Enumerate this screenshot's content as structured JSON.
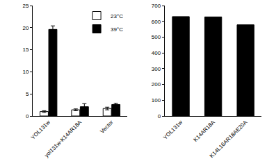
{
  "chart_data": [
    {
      "type": "bar",
      "categories": [
        "YOL131w",
        "yol131w-K14AR18A",
        "Vector"
      ],
      "series": [
        {
          "name": "23°C",
          "color": "#ffffff",
          "values": [
            1.0,
            1.4,
            1.7
          ],
          "error": [
            0.2,
            0.2,
            0.3
          ]
        },
        {
          "name": "39°C",
          "color": "#000000",
          "values": [
            19.6,
            2.1,
            2.6
          ],
          "error": [
            0.8,
            0.7,
            0.3
          ]
        }
      ],
      "ylim": [
        0,
        25
      ],
      "yticks": [
        0,
        5,
        10,
        15,
        20,
        25
      ],
      "grid": false,
      "legend": "top right"
    },
    {
      "type": "bar",
      "categories": [
        "YOL131w",
        "K14AR18A",
        "K14L16AR18AE20A"
      ],
      "values": [
        630,
        628,
        578
      ],
      "color": "#000000",
      "ylim": [
        0,
        700
      ],
      "yticks": [
        0,
        100,
        200,
        300,
        400,
        500,
        600,
        700
      ],
      "grid": false
    }
  ]
}
